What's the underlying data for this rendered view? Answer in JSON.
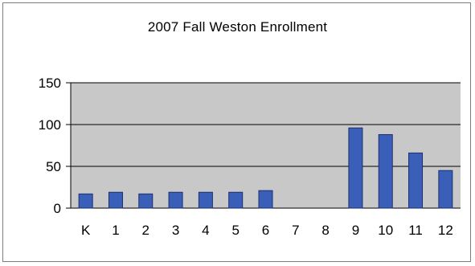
{
  "chart_data": {
    "type": "bar",
    "title": "2007 Fall Weston Enrollment",
    "xlabel": "",
    "ylabel": "",
    "categories": [
      "K",
      "1",
      "2",
      "3",
      "4",
      "5",
      "6",
      "7",
      "8",
      "9",
      "10",
      "11",
      "12"
    ],
    "values": [
      17,
      19,
      17,
      19,
      19,
      19,
      21,
      0,
      0,
      96,
      88,
      66,
      45
    ],
    "ylim": [
      0,
      150
    ],
    "yticks": [
      "0",
      "50",
      "100",
      "150"
    ],
    "grid": true,
    "legend": "none",
    "colors": {
      "bar_fill": "#3a5fb8",
      "bar_stroke": "#1c2f6e",
      "plot_bg": "#c8c8c8",
      "gridline": "#000000"
    }
  }
}
